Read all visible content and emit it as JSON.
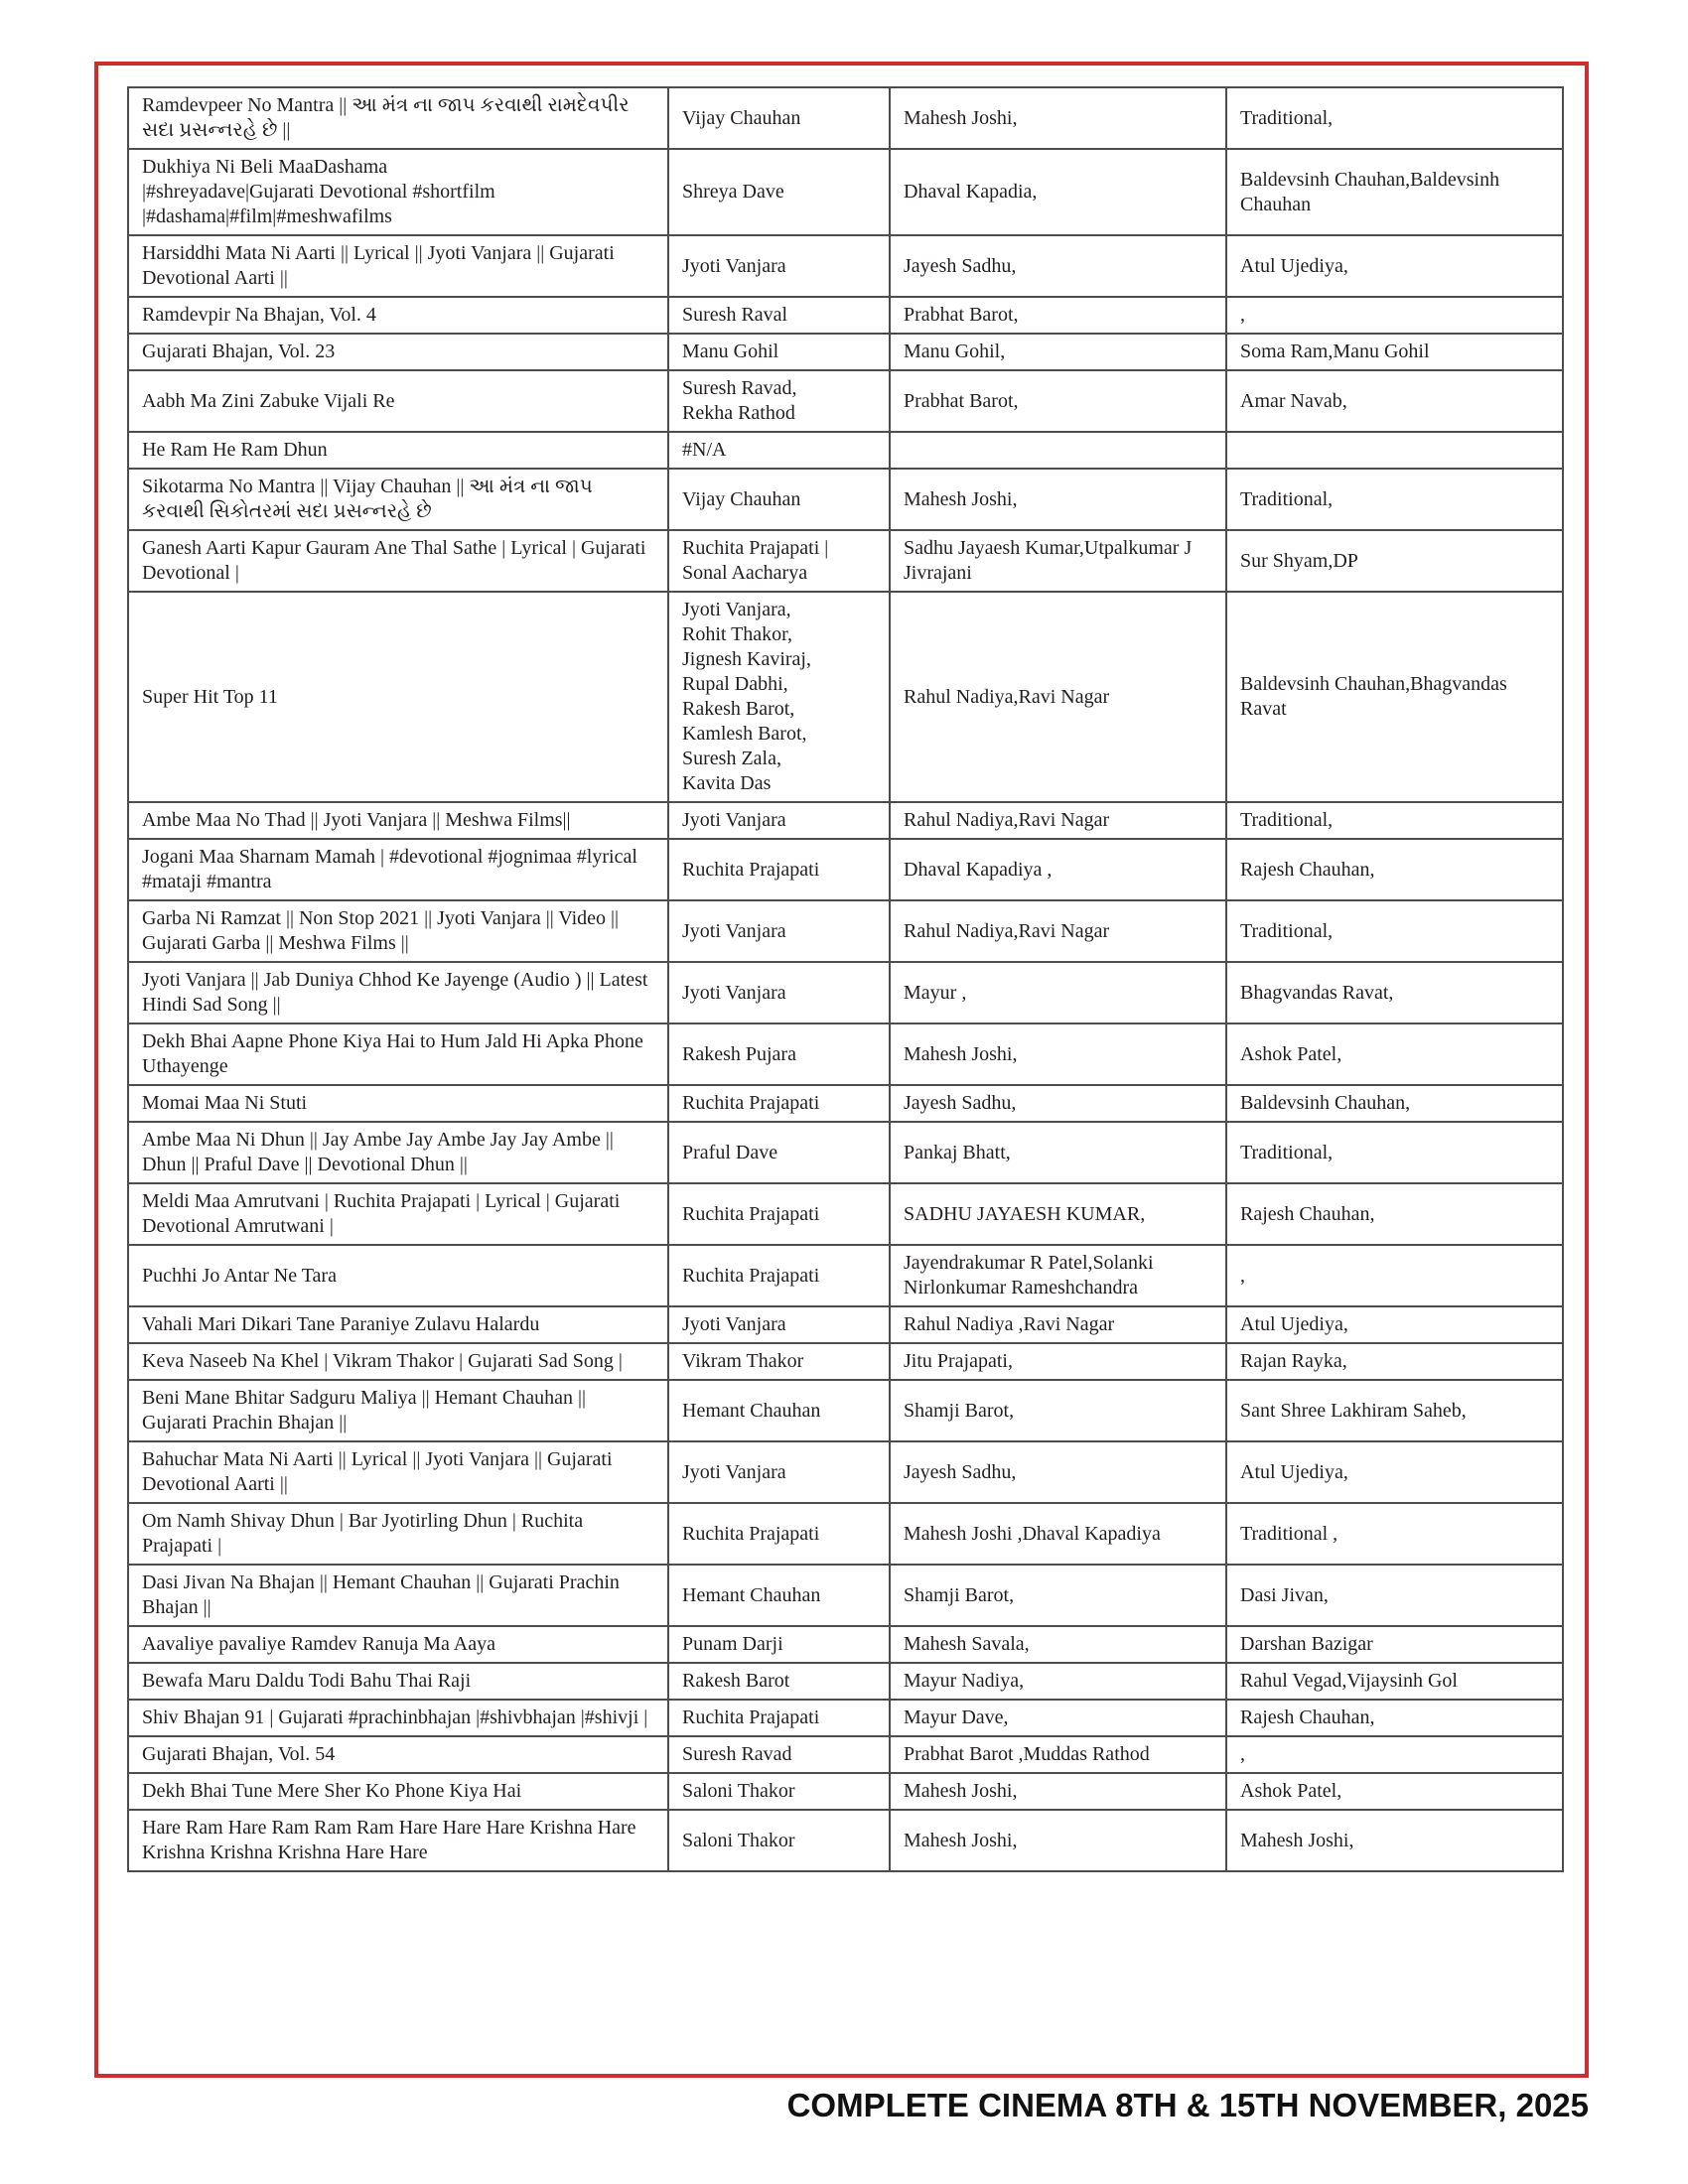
{
  "colors": {
    "frame_red": "#cd2f2c",
    "grid_line": "#4d4d4d",
    "text": "#231f20"
  },
  "footer": {
    "text": "COMPLETE CINEMA 8TH & 15TH NOVEMBER, 2025"
  },
  "table": {
    "columns": [
      "title",
      "singer",
      "music_director",
      "lyricist"
    ],
    "rows": [
      [
        "Ramdevpeer No Mantra || આ મંત્ર ના જાપ કરવાથી રામદેવપીર સદા પ્રસન્નરહે છે ||",
        "Vijay Chauhan",
        "Mahesh Joshi,",
        "Traditional,"
      ],
      [
        "Dukhiya Ni Beli MaaDashama\n|#shreyadave|Gujarati Devotional #shortfilm\n|#dashama|#film|#meshwafilms",
        "Shreya Dave",
        "Dhaval  Kapadia,",
        "Baldevsinh Chauhan,Baldevsinh  Chauhan"
      ],
      [
        "Harsiddhi Mata Ni Aarti || Lyrical || Jyoti Vanjara || Gujarati Devotional Aarti ||",
        "Jyoti Vanjara",
        "Jayesh Sadhu,",
        "Atul Ujediya,"
      ],
      [
        "Ramdevpir Na Bhajan, Vol. 4",
        "Suresh Raval",
        "Prabhat  Barot,",
        ","
      ],
      [
        "Gujarati Bhajan, Vol. 23",
        "Manu Gohil",
        "Manu  Gohil,",
        "Soma  Ram,Manu  Gohil"
      ],
      [
        "Aabh Ma Zini Zabuke Vijali Re",
        "Suresh Ravad,\nRekha Rathod",
        "Prabhat  Barot,",
        "Amar  Navab,"
      ],
      [
        "He Ram He Ram Dhun",
        "#N/A",
        "",
        ""
      ],
      [
        "Sikotarma No Mantra || Vijay Chauhan || આ મંત્ર ના જાપ કરવાથી સિકોતરમાં સદા પ્રસન્નરહે છે",
        "Vijay Chauhan",
        "Mahesh Joshi,",
        "Traditional,"
      ],
      [
        "Ganesh Aarti Kapur Gauram Ane Thal Sathe | Lyrical | Gujarati Devotional |",
        "Ruchita Prajapati |\nSonal Aacharya",
        "Sadhu Jayaesh Kumar,Utpalkumar J Jivrajani",
        "Sur  Shyam,DP"
      ],
      [
        "Super Hit Top 11",
        "Jyoti Vanjara,\nRohit Thakor,\nJignesh Kaviraj,\nRupal Dabhi,\nRakesh Barot,\nKamlesh Barot,\nSuresh Zala,\nKavita Das",
        "Rahul Nadiya,Ravi Nagar",
        "Baldevsinh Chauhan,Bhagvandas Ravat"
      ],
      [
        "Ambe Maa No Thad || Jyoti Vanjara || Meshwa Films||",
        "Jyoti Vanjara",
        "Rahul Nadiya,Ravi Nagar",
        "Traditional,"
      ],
      [
        "Jogani Maa Sharnam Mamah | #devotional #jognimaa #lyrical #mataji #mantra",
        "Ruchita Prajapati",
        "Dhaval Kapadiya ,",
        "Rajesh Chauhan,"
      ],
      [
        "Garba Ni Ramzat || Non Stop 2021 || Jyoti Vanjara || Video || Gujarati Garba || Meshwa Films ||",
        "Jyoti Vanjara",
        "Rahul Nadiya,Ravi Nagar",
        "Traditional,"
      ],
      [
        "Jyoti Vanjara || Jab Duniya Chhod Ke Jayenge (Audio ) || Latest Hindi Sad Song ||",
        "Jyoti Vanjara",
        "Mayur  ,",
        "Bhagvandas  Ravat,"
      ],
      [
        "Dekh Bhai Aapne Phone Kiya Hai to Hum Jald Hi Apka Phone Uthayenge",
        "Rakesh Pujara",
        "Mahesh Joshi,",
        "Ashok  Patel,"
      ],
      [
        "Momai Maa Ni Stuti",
        "Ruchita Prajapati",
        "Jayesh  Sadhu,",
        "Baldevsinh  Chauhan,"
      ],
      [
        "Ambe Maa Ni Dhun || Jay Ambe Jay Ambe Jay Jay Ambe || Dhun || Praful Dave || Devotional Dhun ||",
        "Praful Dave",
        "Pankaj Bhatt,",
        "Traditional,"
      ],
      [
        "Meldi Maa Amrutvani | Ruchita Prajapati | Lyrical | Gujarati Devotional Amrutwani |",
        "Ruchita Prajapati",
        "SADHU JAYAESH KUMAR,",
        "Rajesh  Chauhan,"
      ],
      [
        "Puchhi Jo Antar Ne Tara",
        "Ruchita Prajapati",
        "Jayendrakumar R Patel,Solanki Nirlonkumar Rameshchandra",
        ","
      ],
      [
        "Vahali Mari Dikari Tane Paraniye Zulavu Halardu",
        "Jyoti Vanjara",
        "Rahul  Nadiya ,Ravi  Nagar",
        "Atul  Ujediya,"
      ],
      [
        "Keva Naseeb Na Khel | Vikram Thakor | Gujarati Sad Song |",
        "Vikram Thakor",
        "Jitu  Prajapati,",
        "Rajan  Rayka,"
      ],
      [
        "Beni Mane Bhitar Sadguru Maliya || Hemant Chauhan || Gujarati Prachin Bhajan ||",
        "Hemant Chauhan",
        "Shamji Barot,",
        "Sant Shree Lakhiram Saheb,"
      ],
      [
        "Bahuchar Mata Ni Aarti || Lyrical || Jyoti Vanjara || Gujarati Devotional Aarti ||",
        "Jyoti Vanjara",
        "Jayesh Sadhu,",
        "Atul Ujediya,"
      ],
      [
        "Om Namh Shivay Dhun | Bar Jyotirling Dhun | Ruchita Prajapati |",
        "Ruchita Prajapati",
        "Mahesh  Joshi ,Dhaval Kapadiya",
        "Traditional ,"
      ],
      [
        "Dasi Jivan Na Bhajan || Hemant Chauhan || Gujarati Prachin Bhajan ||",
        "Hemant Chauhan",
        "Shamji Barot,",
        "Dasi Jivan,"
      ],
      [
        "Aavaliye pavaliye Ramdev Ranuja Ma Aaya",
        "Punam Darji",
        "Mahesh  Savala,",
        "Darshan  Bazigar"
      ],
      [
        "Bewafa Maru Daldu Todi Bahu Thai Raji",
        "Rakesh Barot",
        "Mayur Nadiya,",
        "Rahul  Vegad,Vijaysinh  Gol"
      ],
      [
        "Shiv Bhajan 91 | Gujarati #prachinbhajan |#shivbhajan |#shivji |",
        "Ruchita Prajapati",
        "Mayur  Dave,",
        "Rajesh Chauhan,"
      ],
      [
        "Gujarati Bhajan, Vol. 54",
        "Suresh Ravad",
        "Prabhat  Barot ,Muddas Rathod",
        ","
      ],
      [
        "Dekh Bhai Tune Mere Sher Ko Phone Kiya Hai",
        "Saloni Thakor",
        "Mahesh Joshi,",
        "Ashok  Patel,"
      ],
      [
        "Hare Ram Hare Ram Ram Ram Hare Hare Hare Krishna Hare Krishna Krishna Krishna Hare Hare",
        "Saloni Thakor",
        "Mahesh Joshi,",
        "Mahesh  Joshi,"
      ]
    ]
  }
}
